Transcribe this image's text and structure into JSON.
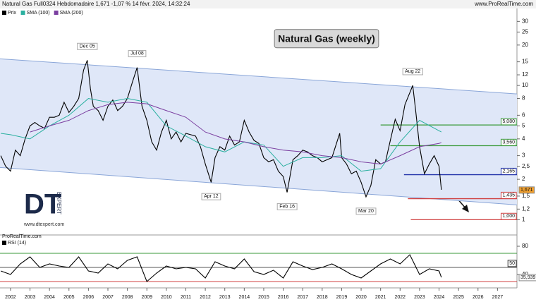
{
  "header": {
    "title": "Natural Gas Full0324 Hebdomadaire 1,671 -1,07 % 14 févr. 2024, 14:32:24",
    "site": "www.ProRealTime.com"
  },
  "logo": {
    "mark": "DT",
    "word": "EXPERT",
    "url": "www.dtexpert.com"
  },
  "chart_data": [
    {
      "type": "line",
      "title": "Natural Gas (weekly)",
      "log_scale": true,
      "xlim": [
        2001.46,
        2028
      ],
      "ylim": [
        0.77,
        32
      ],
      "yticks": [
        30,
        25,
        20,
        15,
        12,
        10,
        8,
        6,
        5,
        4,
        3,
        {
          "value": 2.5,
          "label": "2,5"
        },
        2,
        {
          "value": 1.5,
          "label": "1,5"
        },
        {
          "value": 1.2,
          "label": "1,2"
        },
        1
      ],
      "series": [
        {
          "name": "Prix",
          "color": "#000000",
          "x": [
            2001.5,
            2001.75,
            2002,
            2002.25,
            2002.5,
            2002.75,
            2003,
            2003.25,
            2003.5,
            2003.75,
            2004,
            2004.25,
            2004.5,
            2004.75,
            2005,
            2005.25,
            2005.5,
            2005.75,
            2005.94,
            2006.1,
            2006.25,
            2006.5,
            2006.75,
            2007,
            2007.25,
            2007.5,
            2007.75,
            2008,
            2008.25,
            2008.5,
            2008.75,
            2009,
            2009.25,
            2009.5,
            2009.75,
            2010,
            2010.25,
            2010.5,
            2010.75,
            2011,
            2011.25,
            2011.5,
            2011.75,
            2012,
            2012.3,
            2012.5,
            2012.75,
            2013,
            2013.25,
            2013.5,
            2013.75,
            2014,
            2014.25,
            2014.5,
            2014.75,
            2015,
            2015.25,
            2015.5,
            2015.75,
            2016,
            2016.2,
            2016.5,
            2016.75,
            2017,
            2017.25,
            2017.5,
            2017.75,
            2018,
            2018.25,
            2018.5,
            2018.9,
            2019,
            2019.25,
            2019.5,
            2019.75,
            2020,
            2020.25,
            2020.5,
            2020.75,
            2021,
            2021.25,
            2021.5,
            2021.75,
            2022,
            2022.25,
            2022.65,
            2022.8,
            2023,
            2023.25,
            2023.5,
            2023.75,
            2024,
            2024.12
          ],
          "values": [
            3.0,
            2.5,
            2.3,
            3.3,
            3.0,
            4.0,
            5.0,
            5.3,
            5.0,
            4.8,
            5.8,
            5.8,
            6.0,
            7.5,
            6.3,
            7.0,
            8.0,
            13.0,
            15.4,
            9.5,
            7.0,
            6.5,
            5.5,
            7.0,
            7.8,
            6.5,
            7.0,
            8.0,
            10.5,
            13.6,
            7.0,
            5.5,
            3.8,
            3.3,
            4.5,
            5.5,
            4.0,
            4.5,
            3.8,
            4.4,
            4.3,
            4.2,
            3.5,
            2.6,
            1.9,
            2.9,
            3.5,
            3.3,
            4.2,
            3.6,
            3.8,
            5.5,
            4.5,
            3.9,
            3.7,
            2.9,
            2.7,
            2.8,
            2.3,
            2.1,
            1.6,
            2.8,
            3.0,
            3.3,
            3.2,
            3.0,
            2.9,
            2.7,
            2.8,
            2.9,
            4.4,
            2.9,
            2.6,
            2.2,
            2.3,
            1.9,
            1.48,
            1.8,
            2.8,
            2.6,
            2.7,
            3.9,
            5.6,
            4.6,
            7.2,
            10.0,
            6.5,
            3.5,
            2.2,
            2.6,
            3.0,
            2.5,
            1.671
          ]
        },
        {
          "name": "SMA (100)",
          "color": "#2bb0a0",
          "x": [
            2001.5,
            2002,
            2003,
            2004,
            2005,
            2006,
            2007,
            2008,
            2009,
            2010,
            2011,
            2012,
            2013,
            2014,
            2015,
            2016,
            2017,
            2018,
            2019,
            2020,
            2021,
            2022,
            2023,
            2024,
            2024.12
          ],
          "values": [
            4.4,
            4.3,
            4.0,
            5.0,
            6.0,
            8.0,
            7.5,
            8.0,
            7.5,
            5.0,
            4.2,
            3.5,
            3.2,
            3.8,
            3.6,
            2.5,
            2.9,
            2.9,
            3.0,
            2.3,
            2.4,
            3.8,
            5.5,
            4.6,
            4.5
          ]
        },
        {
          "name": "SMA (200)",
          "color": "#7b3fa0",
          "x": [
            2003,
            2004,
            2005,
            2006,
            2007,
            2008,
            2009,
            2010,
            2011,
            2012,
            2013,
            2014,
            2015,
            2016,
            2017,
            2018,
            2019,
            2020,
            2021,
            2022,
            2023,
            2024,
            2024.12
          ],
          "values": [
            4.5,
            5.0,
            5.5,
            6.5,
            7.2,
            7.5,
            7.3,
            6.5,
            5.8,
            4.5,
            4.0,
            3.8,
            3.5,
            3.3,
            3.2,
            3.0,
            2.9,
            2.7,
            2.6,
            3.0,
            3.5,
            3.7,
            3.75
          ]
        }
      ],
      "current": {
        "value": 1.671,
        "label": "1,671",
        "color": "#f0a030"
      },
      "channel": {
        "x": [
          2001.46,
          2028
        ],
        "upper": [
          15.8,
          8.65
        ],
        "lower": [
          2.45,
          1.29
        ],
        "color": "#8aa6d8",
        "fill": "#dfe7f8"
      },
      "levels": [
        {
          "value": 5.08,
          "label": "5,080",
          "color": "#3a9a3a",
          "x_start": 2021.0
        },
        {
          "value": 3.56,
          "label": "3,560",
          "color": "#3a9a3a",
          "x_start": 2021.5
        },
        {
          "value": 2.165,
          "label": "2,165",
          "color": "#2233aa",
          "x_start": 2022.2
        },
        {
          "value": 1.435,
          "label": "1,435",
          "color": "#d04040",
          "x_start": 2022.4
        },
        {
          "value": 1.0,
          "label": "1,000",
          "color": "#d04040",
          "x_start": 2022.55
        }
      ],
      "annotations": [
        {
          "text": "Dec 05",
          "x": 2005.94,
          "y": 15.4,
          "position": "above"
        },
        {
          "text": "Jul 08",
          "x": 2008.5,
          "y": 13.6,
          "position": "above"
        },
        {
          "text": "Aug 22",
          "x": 2022.65,
          "y": 10.0,
          "position": "above"
        },
        {
          "text": "Apr 12",
          "x": 2012.3,
          "y": 1.9,
          "position": "below"
        },
        {
          "text": "Feb 16",
          "x": 2016.2,
          "y": 1.6,
          "position": "below"
        },
        {
          "text": "Mar 20",
          "x": 2020.25,
          "y": 1.48,
          "position": "below"
        }
      ]
    },
    {
      "type": "line",
      "source": "ProRealTime.com",
      "xlim": [
        2001.46,
        2028
      ],
      "ylim": [
        24,
        89
      ],
      "xticks": [
        2002,
        2003,
        2004,
        2005,
        2006,
        2007,
        2008,
        2009,
        2010,
        2011,
        2012,
        2013,
        2014,
        2015,
        2016,
        2017,
        2018,
        2019,
        2020,
        2021,
        2022,
        2023,
        2024,
        2025,
        2026,
        2027
      ],
      "yticks": [
        80,
        40
      ],
      "levels": [
        {
          "value": 70,
          "color": "#3a9a3a"
        },
        {
          "value": 50,
          "color": "#555555",
          "boxed": true
        },
        {
          "value": 30,
          "color": "#d04040"
        }
      ],
      "series": [
        {
          "name": "RSI (14)",
          "color": "#000000",
          "x": [
            2001.5,
            2002,
            2002.5,
            2003,
            2003.5,
            2004,
            2004.5,
            2005,
            2005.5,
            2006,
            2006.5,
            2007,
            2007.5,
            2008,
            2008.5,
            2009,
            2009.5,
            2010,
            2010.5,
            2011,
            2011.5,
            2012,
            2012.5,
            2013,
            2013.5,
            2014,
            2014.5,
            2015,
            2015.5,
            2016,
            2016.5,
            2017,
            2017.5,
            2018,
            2018.5,
            2019,
            2019.5,
            2020,
            2020.5,
            2021,
            2021.5,
            2022,
            2022.5,
            2023,
            2023.5,
            2024,
            2024.12
          ],
          "values": [
            45,
            40,
            55,
            65,
            50,
            55,
            52,
            50,
            65,
            45,
            42,
            55,
            48,
            60,
            65,
            30,
            42,
            52,
            48,
            50,
            48,
            35,
            58,
            52,
            48,
            62,
            44,
            40,
            46,
            35,
            58,
            52,
            47,
            50,
            55,
            48,
            40,
            35,
            45,
            55,
            62,
            55,
            68,
            40,
            48,
            45,
            35.939
          ]
        }
      ],
      "current": {
        "value": 35.939,
        "label": "35,939"
      }
    }
  ]
}
